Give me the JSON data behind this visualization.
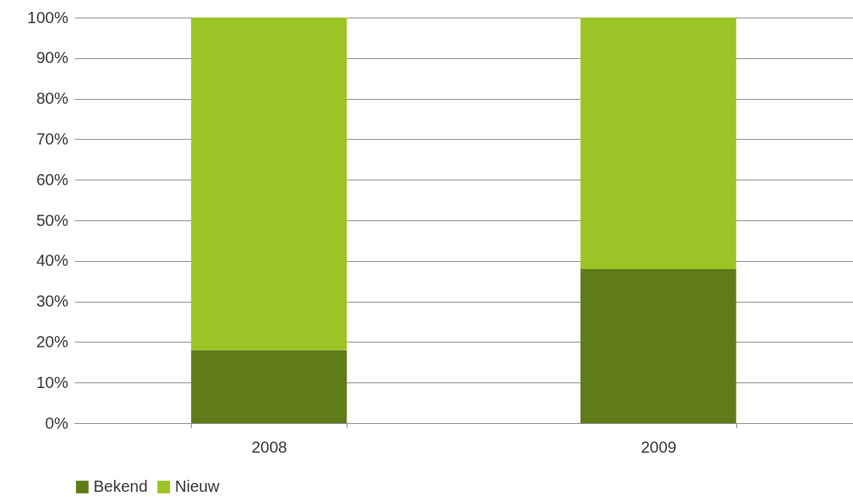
{
  "chart_data": {
    "type": "bar",
    "stacked": true,
    "categories": [
      "2008",
      "2009"
    ],
    "series": [
      {
        "name": "Bekend",
        "color": "#5f7b1a",
        "values": [
          18,
          38
        ]
      },
      {
        "name": "Nieuw",
        "color": "#9ac524",
        "values": [
          82,
          62
        ]
      }
    ],
    "ylim": [
      0,
      100
    ],
    "yticks": [
      {
        "value": 0,
        "label": "0%"
      },
      {
        "value": 10,
        "label": "10%"
      },
      {
        "value": 20,
        "label": "20%"
      },
      {
        "value": 30,
        "label": "30%"
      },
      {
        "value": 40,
        "label": "40%"
      },
      {
        "value": 50,
        "label": "50%"
      },
      {
        "value": 60,
        "label": "60%"
      },
      {
        "value": 70,
        "label": "70%"
      },
      {
        "value": 80,
        "label": "80%"
      },
      {
        "value": 90,
        "label": "90%"
      },
      {
        "value": 100,
        "label": "100%"
      }
    ],
    "grid": "y",
    "legend": "bottom"
  }
}
